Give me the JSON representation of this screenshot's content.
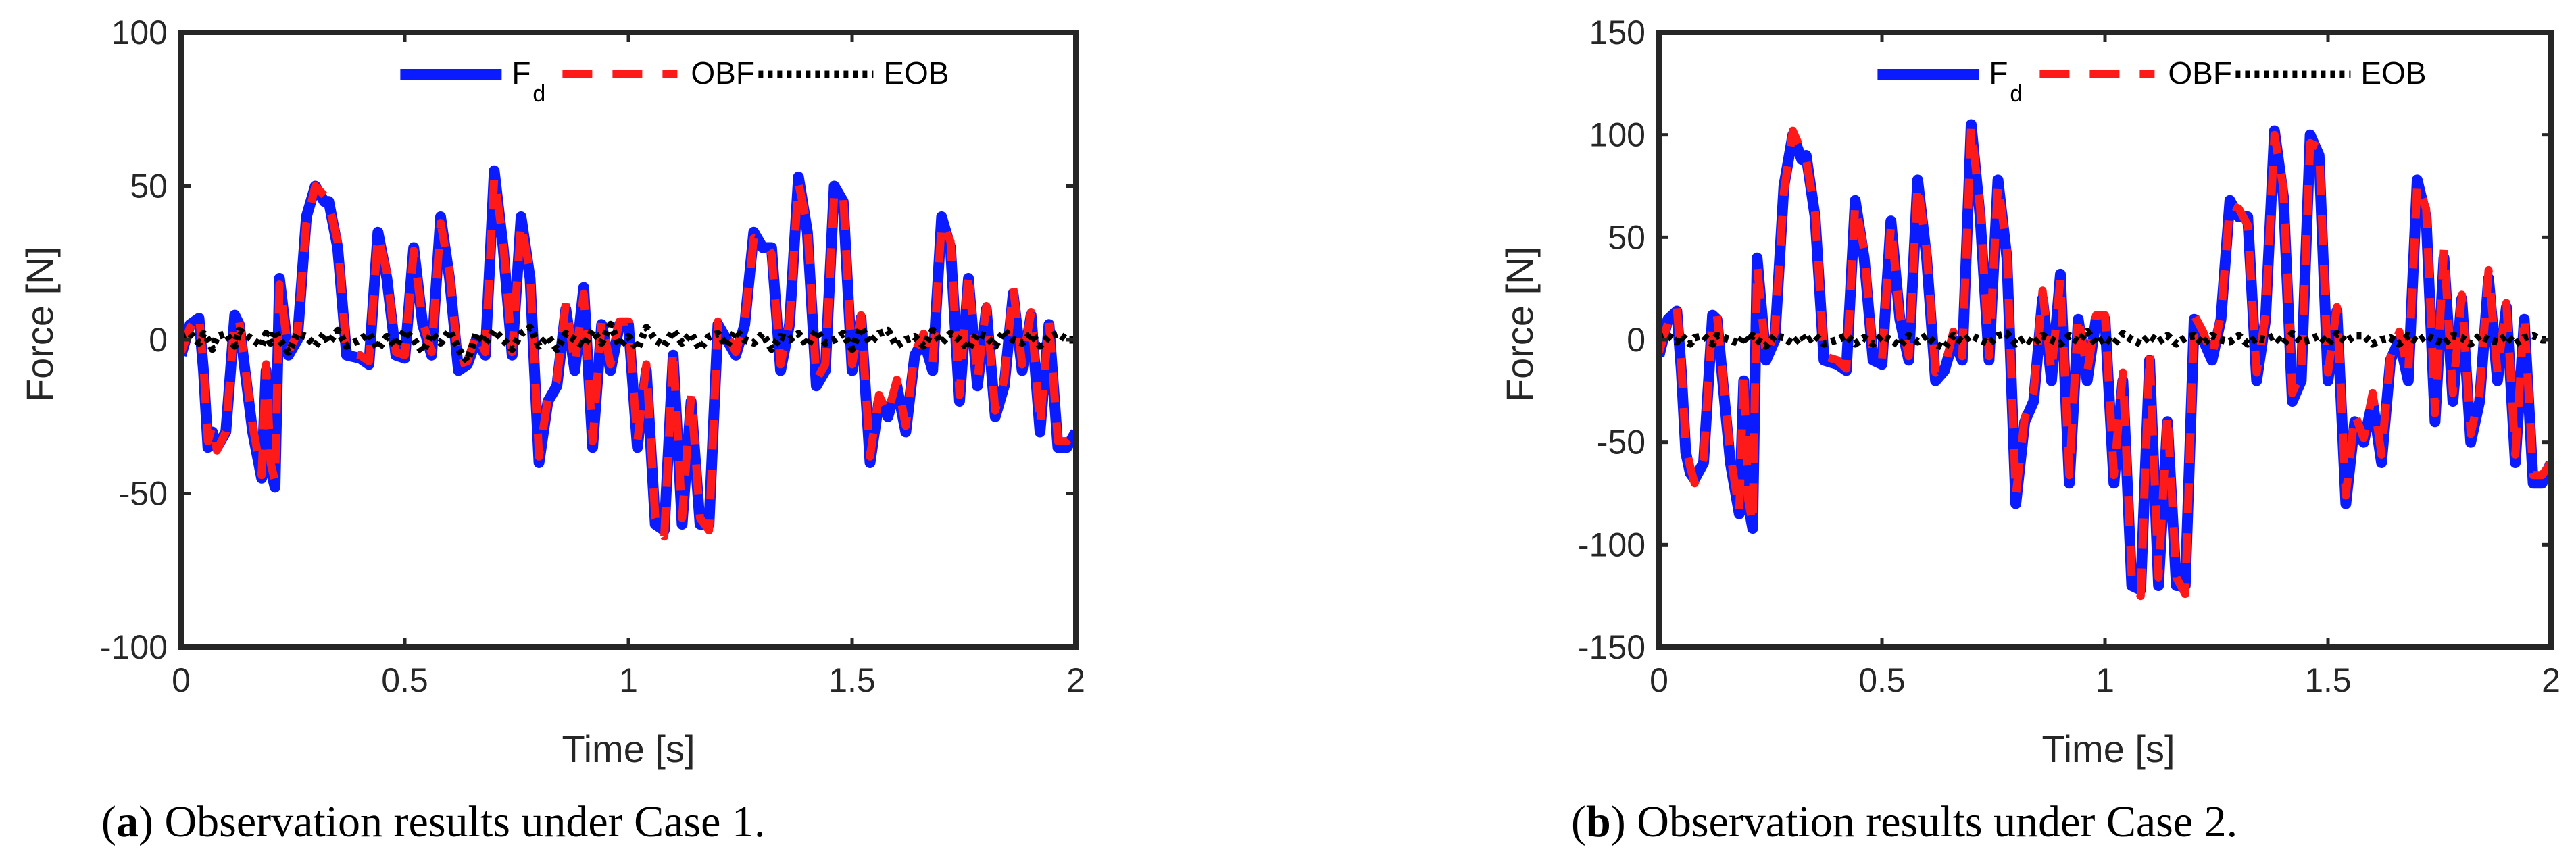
{
  "chart_data": [
    {
      "type": "line",
      "panel": "a",
      "caption_letter": "a",
      "caption_text": "Observation results under Case 1.",
      "xlabel": "Time [s]",
      "ylabel": "Force [N]",
      "xlim": [
        0,
        2
      ],
      "ylim": [
        -100,
        100
      ],
      "xticks": [
        0,
        0.5,
        1,
        1.5,
        2
      ],
      "xtick_labels": [
        "0",
        "0.5",
        "1",
        "1.5",
        "2"
      ],
      "yticks": [
        -100,
        -50,
        0,
        50,
        100
      ],
      "ytick_labels": [
        "-100",
        "-50",
        "0",
        "50",
        "100"
      ],
      "legend": [
        "F",
        "OBF",
        "EOB"
      ],
      "legend_sub": "d",
      "x": [
        0,
        0.02,
        0.04,
        0.05,
        0.06,
        0.07,
        0.08,
        0.1,
        0.12,
        0.13,
        0.16,
        0.18,
        0.19,
        0.2,
        0.21,
        0.22,
        0.24,
        0.26,
        0.28,
        0.3,
        0.32,
        0.33,
        0.35,
        0.37,
        0.4,
        0.42,
        0.44,
        0.46,
        0.48,
        0.5,
        0.52,
        0.54,
        0.56,
        0.58,
        0.6,
        0.62,
        0.64,
        0.66,
        0.68,
        0.7,
        0.72,
        0.74,
        0.76,
        0.78,
        0.8,
        0.82,
        0.84,
        0.86,
        0.88,
        0.9,
        0.92,
        0.94,
        0.96,
        0.98,
        1.0,
        1.02,
        1.04,
        1.06,
        1.08,
        1.1,
        1.12,
        1.14,
        1.16,
        1.18,
        1.2,
        1.22,
        1.24,
        1.26,
        1.28,
        1.3,
        1.32,
        1.34,
        1.36,
        1.38,
        1.4,
        1.42,
        1.44,
        1.46,
        1.48,
        1.5,
        1.52,
        1.54,
        1.56,
        1.58,
        1.6,
        1.62,
        1.64,
        1.66,
        1.68,
        1.7,
        1.72,
        1.74,
        1.76,
        1.78,
        1.8,
        1.82,
        1.84,
        1.86,
        1.88,
        1.9,
        1.92,
        1.94,
        1.96,
        1.98,
        2.0
      ],
      "series": [
        {
          "name": "F_d",
          "values": [
            -5,
            5,
            7,
            -10,
            -35,
            -30,
            -35,
            -30,
            8,
            5,
            -30,
            -45,
            -10,
            -42,
            -48,
            20,
            -5,
            0,
            40,
            50,
            45,
            45,
            30,
            -5,
            -6,
            -8,
            35,
            20,
            -5,
            -6,
            30,
            5,
            -5,
            40,
            20,
            -10,
            -8,
            0,
            -5,
            55,
            30,
            -5,
            40,
            20,
            -40,
            -20,
            -15,
            10,
            -10,
            17,
            -35,
            5,
            -10,
            5,
            5,
            -35,
            -10,
            -60,
            -62,
            -5,
            -60,
            -20,
            -60,
            -60,
            5,
            0,
            -5,
            5,
            35,
            30,
            30,
            -10,
            5,
            53,
            35,
            -15,
            -10,
            50,
            45,
            -10,
            7,
            -40,
            -20,
            -25,
            -15,
            -30,
            -5,
            0,
            -10,
            40,
            30,
            -20,
            20,
            -15,
            10,
            -25,
            -15,
            15,
            -10,
            8,
            -30,
            5,
            -35,
            -35,
            -30
          ]
        },
        {
          "name": "OBF",
          "values": [
            -4,
            4,
            8,
            -8,
            -33,
            -28,
            -36,
            -30,
            7,
            6,
            -28,
            -44,
            -8,
            -40,
            -46,
            18,
            -4,
            2,
            38,
            50,
            47,
            44,
            32,
            -4,
            -5,
            -7,
            34,
            22,
            -4,
            -5,
            29,
            6,
            -4,
            38,
            22,
            -8,
            -7,
            2,
            -4,
            53,
            32,
            -4,
            38,
            22,
            -38,
            -19,
            -13,
            12,
            -8,
            15,
            -33,
            6,
            -8,
            6,
            6,
            -33,
            -8,
            -58,
            -64,
            -3,
            -58,
            -18,
            -58,
            -62,
            6,
            2,
            -4,
            6,
            33,
            32,
            28,
            -8,
            6,
            51,
            37,
            -13,
            -8,
            48,
            47,
            -8,
            8,
            -38,
            -18,
            -24,
            -13,
            -28,
            -4,
            2,
            -8,
            38,
            32,
            -18,
            22,
            -13,
            11,
            -23,
            -13,
            17,
            -8,
            9,
            -28,
            6,
            -33,
            -33,
            -30
          ]
        },
        {
          "name": "EOB",
          "values": [
            1,
            2,
            -1,
            2,
            0,
            -3,
            1,
            2,
            -2,
            3,
            0,
            -2,
            2,
            -1,
            3,
            0,
            -4,
            2,
            1,
            -2,
            2,
            -1,
            3,
            -2,
            0,
            2,
            -3,
            1,
            -2,
            3,
            0,
            -4,
            2,
            -1,
            3,
            -3,
            -7,
            2,
            -1,
            3,
            0,
            -3,
            2,
            4,
            -2,
            1,
            -3,
            2,
            0,
            -2,
            3,
            -1,
            5,
            -2,
            1,
            -3,
            4,
            0,
            -2,
            3,
            -1,
            2,
            -3,
            1,
            2,
            -2,
            3,
            0,
            -1,
            2,
            -3,
            1,
            0,
            2,
            -2,
            3,
            -1,
            0,
            2,
            -3,
            4,
            -1,
            2,
            3,
            -2,
            0,
            1,
            -2,
            3,
            -1,
            2,
            0,
            -3,
            2,
            1,
            -2,
            3,
            0,
            -1,
            2,
            -2,
            1,
            2,
            0,
            0
          ]
        }
      ]
    },
    {
      "type": "line",
      "panel": "b",
      "caption_letter": "b",
      "caption_text": "Observation results under Case 2.",
      "xlabel": "Time [s]",
      "ylabel": "Force [N]",
      "xlim": [
        0,
        2
      ],
      "ylim": [
        -150,
        150
      ],
      "xticks": [
        0,
        0.5,
        1,
        1.5,
        2
      ],
      "xtick_labels": [
        "0",
        "0.5",
        "1",
        "1.5",
        "2"
      ],
      "yticks": [
        -150,
        -100,
        -50,
        0,
        50,
        100,
        150
      ],
      "ytick_labels": [
        "-150",
        "-100",
        "-50",
        "0",
        "50",
        "100",
        "150"
      ],
      "legend": [
        "F",
        "OBF",
        "EOB"
      ],
      "legend_sub": "d",
      "x": [
        0,
        0.02,
        0.04,
        0.05,
        0.06,
        0.07,
        0.08,
        0.1,
        0.12,
        0.13,
        0.16,
        0.18,
        0.19,
        0.2,
        0.21,
        0.22,
        0.24,
        0.26,
        0.28,
        0.3,
        0.32,
        0.33,
        0.35,
        0.37,
        0.4,
        0.42,
        0.44,
        0.46,
        0.48,
        0.5,
        0.52,
        0.54,
        0.56,
        0.58,
        0.6,
        0.62,
        0.64,
        0.66,
        0.68,
        0.7,
        0.72,
        0.74,
        0.76,
        0.78,
        0.8,
        0.82,
        0.84,
        0.86,
        0.88,
        0.9,
        0.92,
        0.94,
        0.96,
        0.98,
        1.0,
        1.02,
        1.04,
        1.06,
        1.08,
        1.1,
        1.12,
        1.14,
        1.16,
        1.18,
        1.2,
        1.22,
        1.24,
        1.26,
        1.28,
        1.3,
        1.32,
        1.34,
        1.36,
        1.38,
        1.4,
        1.42,
        1.44,
        1.46,
        1.48,
        1.5,
        1.52,
        1.54,
        1.56,
        1.58,
        1.6,
        1.62,
        1.64,
        1.66,
        1.68,
        1.7,
        1.72,
        1.74,
        1.76,
        1.78,
        1.8,
        1.82,
        1.84,
        1.86,
        1.88,
        1.9,
        1.92,
        1.94,
        1.96,
        1.98,
        2.0
      ],
      "series": [
        {
          "name": "F_d",
          "values": [
            -8,
            10,
            14,
            -15,
            -55,
            -65,
            -68,
            -60,
            12,
            10,
            -60,
            -85,
            -20,
            -80,
            -92,
            40,
            -10,
            0,
            75,
            100,
            88,
            90,
            60,
            -10,
            -12,
            -15,
            68,
            40,
            -10,
            -12,
            58,
            10,
            -10,
            78,
            40,
            -20,
            -15,
            0,
            -10,
            105,
            60,
            -10,
            78,
            40,
            -80,
            -40,
            -30,
            20,
            -20,
            32,
            -70,
            10,
            -20,
            10,
            10,
            -70,
            -20,
            -120,
            -122,
            -10,
            -120,
            -40,
            -120,
            -120,
            10,
            0,
            -10,
            10,
            68,
            60,
            60,
            -20,
            10,
            102,
            70,
            -30,
            -20,
            100,
            90,
            -20,
            14,
            -80,
            -40,
            -50,
            -30,
            -60,
            -10,
            0,
            -20,
            78,
            60,
            -40,
            40,
            -30,
            20,
            -50,
            -30,
            30,
            -20,
            16,
            -60,
            10,
            -70,
            -70,
            -60
          ]
        },
        {
          "name": "OBF",
          "values": [
            -6,
            8,
            16,
            -12,
            -52,
            -62,
            -70,
            -58,
            11,
            12,
            -56,
            -84,
            -16,
            -78,
            -90,
            36,
            -8,
            4,
            72,
            102,
            92,
            88,
            62,
            -8,
            -10,
            -14,
            66,
            44,
            -8,
            -10,
            56,
            12,
            -8,
            76,
            44,
            -16,
            -14,
            4,
            -8,
            104,
            64,
            -8,
            76,
            44,
            -76,
            -38,
            -26,
            24,
            -16,
            30,
            -66,
            12,
            -16,
            12,
            12,
            -66,
            -16,
            -116,
            -125,
            -6,
            -116,
            -36,
            -116,
            -124,
            12,
            4,
            -8,
            12,
            66,
            64,
            56,
            -16,
            12,
            100,
            74,
            -26,
            -16,
            96,
            94,
            -16,
            16,
            -76,
            -36,
            -48,
            -26,
            -56,
            -8,
            4,
            -16,
            76,
            64,
            -36,
            44,
            -26,
            22,
            -46,
            -26,
            34,
            -16,
            18,
            -56,
            12,
            -66,
            -66,
            -60
          ]
        },
        {
          "name": "EOB",
          "values": [
            1,
            2,
            -1,
            2,
            0,
            -2,
            1,
            2,
            -2,
            2,
            0,
            -2,
            2,
            -1,
            2,
            0,
            -3,
            2,
            1,
            -2,
            2,
            -1,
            2,
            -2,
            0,
            2,
            -2,
            1,
            -2,
            2,
            0,
            -3,
            2,
            -1,
            2,
            -2,
            -4,
            2,
            -1,
            2,
            0,
            -2,
            2,
            3,
            -2,
            1,
            -2,
            2,
            0,
            -2,
            2,
            -1,
            4,
            -2,
            1,
            -2,
            3,
            0,
            -2,
            2,
            -1,
            2,
            -2,
            1,
            2,
            -2,
            2,
            0,
            -1,
            2,
            -2,
            1,
            0,
            2,
            -2,
            3,
            -1,
            0,
            2,
            -2,
            3,
            -1,
            2,
            2,
            -2,
            0,
            1,
            -2,
            2,
            -1,
            2,
            0,
            -2,
            2,
            1,
            -2,
            2,
            0,
            -1,
            2,
            -2,
            1,
            2,
            0,
            0
          ]
        }
      ]
    }
  ],
  "colors": {
    "fd": "#0a1cff",
    "obf": "#ff1a1a",
    "eob": "#000000",
    "axis": "#262626"
  }
}
